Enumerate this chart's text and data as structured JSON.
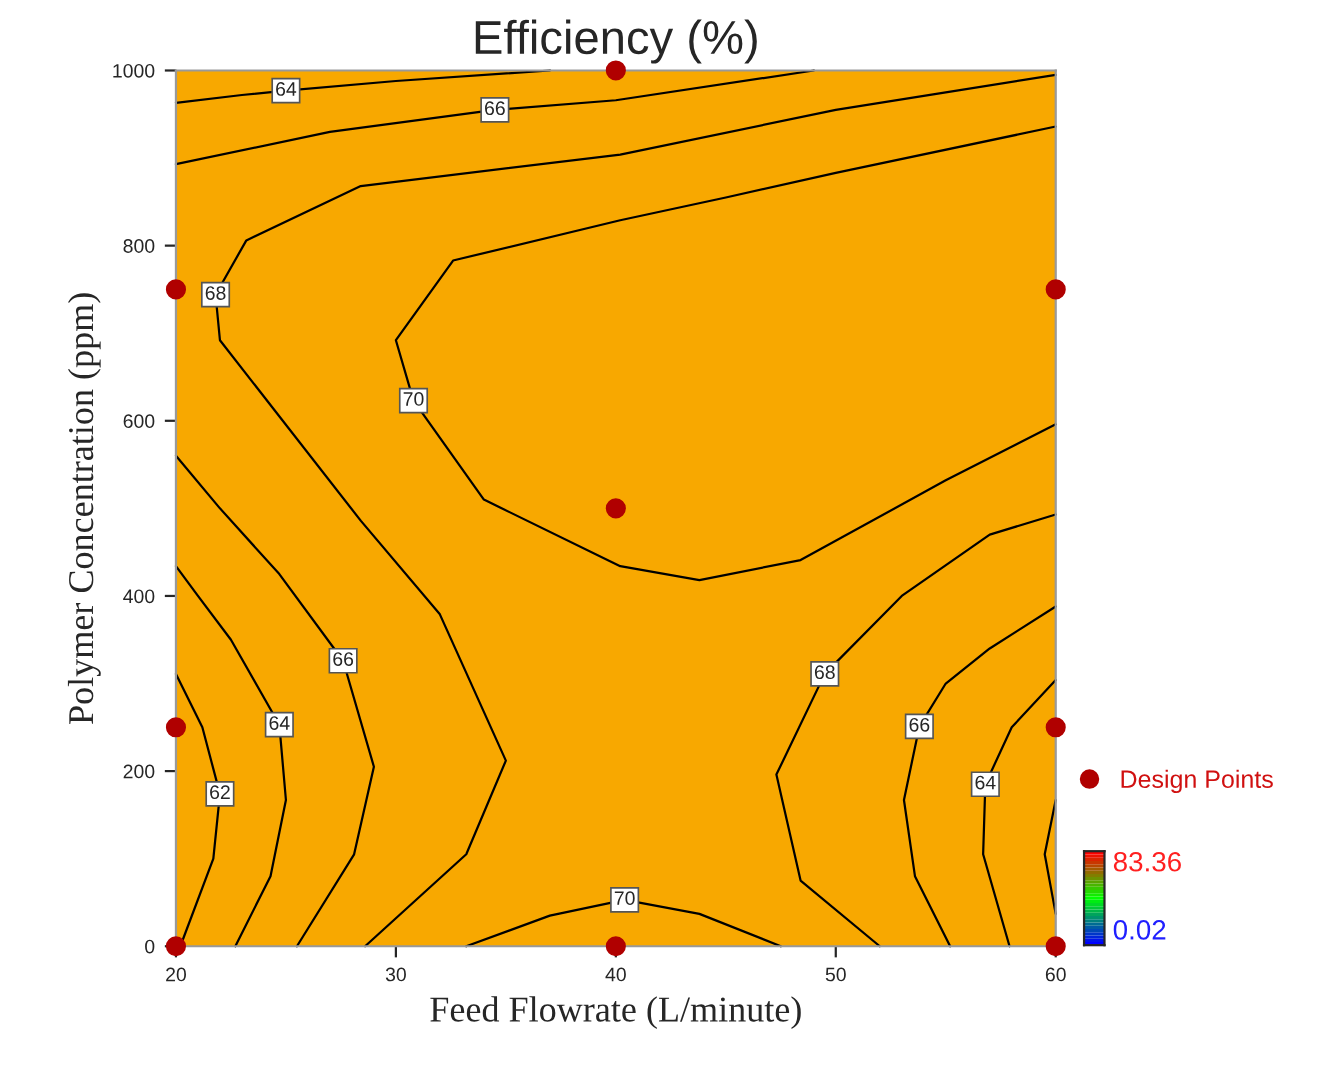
{
  "chart_data": {
    "type": "line",
    "title": "Efficiency (%)",
    "xlabel": "Feed Flowrate (L/minute)",
    "ylabel": "Polymer Concentration (ppm)",
    "xlim": [
      20,
      60
    ],
    "ylim": [
      0,
      1000
    ],
    "xticks": [
      20,
      30,
      40,
      50,
      60
    ],
    "yticks": [
      0,
      200,
      400,
      600,
      800,
      1000
    ],
    "grid": false,
    "legend": "right",
    "marker": "none",
    "line_style": "solid",
    "bands": [
      {
        "axis": "x",
        "from": 20,
        "to": 60,
        "color": "#f8a800"
      }
    ],
    "annotations": [
      "83.36",
      "0.02"
    ],
    "series": [
      {
        "name": "64",
        "color": "#000000",
        "x": [
          20,
          23,
          25,
          30,
          37
        ],
        "values": [
          963,
          972,
          977,
          988,
          1000
        ]
      },
      {
        "name": "66",
        "color": "#000000",
        "x": [
          20,
          27,
          34.5,
          40,
          49
        ],
        "values": [
          893,
          930,
          955,
          966,
          1000
        ]
      },
      {
        "name": "68",
        "color": "#000000",
        "x": [
          60,
          55,
          50,
          40.2,
          28.4,
          23.2,
          21.8,
          22,
          28.4,
          32,
          35,
          33.2,
          28.6
        ],
        "values": [
          995,
          975,
          955,
          904,
          868,
          806,
          744,
          692,
          486,
          379,
          212,
          105,
          0
        ]
      },
      {
        "name": "70",
        "color": "#000000",
        "x": [
          60,
          50,
          45,
          40.2,
          32.6,
          30,
          30.8,
          34,
          40.2,
          43.8,
          48.4,
          55,
          60
        ],
        "values": [
          936,
          883,
          855,
          829,
          783,
          692,
          623,
          510,
          434,
          418,
          441,
          532,
          596
        ]
      },
      {
        "name": "70",
        "color": "#000000",
        "x": [
          33.2,
          37,
          40.4,
          43.8,
          47.5
        ],
        "values": [
          0,
          35,
          53,
          37,
          0
        ]
      },
      {
        "name": "66",
        "color": "#000000",
        "x": [
          20,
          22,
          24.7,
          27.6,
          29,
          28.1,
          25.5
        ],
        "values": [
          560,
          500,
          425,
          326,
          205,
          105,
          0
        ]
      },
      {
        "name": "64",
        "color": "#000000",
        "x": [
          20,
          21,
          22.5,
          24.7,
          25,
          24.3,
          22.7
        ],
        "values": [
          434,
          400,
          350,
          253,
          167,
          80,
          0
        ]
      },
      {
        "name": "62",
        "color": "#000000",
        "x": [
          20,
          21.2,
          22,
          21.7,
          20.2
        ],
        "values": [
          311,
          250,
          174,
          100,
          0
        ]
      },
      {
        "name": "68",
        "color": "#000000",
        "x": [
          60,
          57,
          53,
          49.5,
          47.3,
          48.4,
          52
        ],
        "values": [
          493,
          470,
          400,
          311,
          196,
          75,
          0
        ]
      },
      {
        "name": "66",
        "color": "#000000",
        "x": [
          60,
          57,
          55,
          53.8,
          53.1,
          53.6,
          55.2
        ],
        "values": [
          388,
          340,
          300,
          251,
          167,
          80,
          0
        ]
      },
      {
        "name": "64",
        "color": "#000000",
        "x": [
          60,
          58,
          56.8,
          56.7,
          57.9
        ],
        "values": [
          304,
          250,
          185,
          105,
          0
        ]
      },
      {
        "color": "#000000",
        "x": [
          60,
          59.5,
          60
        ],
        "values": [
          167,
          105,
          37
        ]
      },
      {
        "name": "Design Points",
        "type": "scatter",
        "color": "#b00000",
        "marker": "circle",
        "x": [
          20,
          20,
          20,
          40,
          40,
          40,
          60,
          60,
          60
        ],
        "values": [
          0,
          250,
          750,
          0,
          500,
          1000,
          0,
          250,
          750
        ]
      }
    ]
  }
}
